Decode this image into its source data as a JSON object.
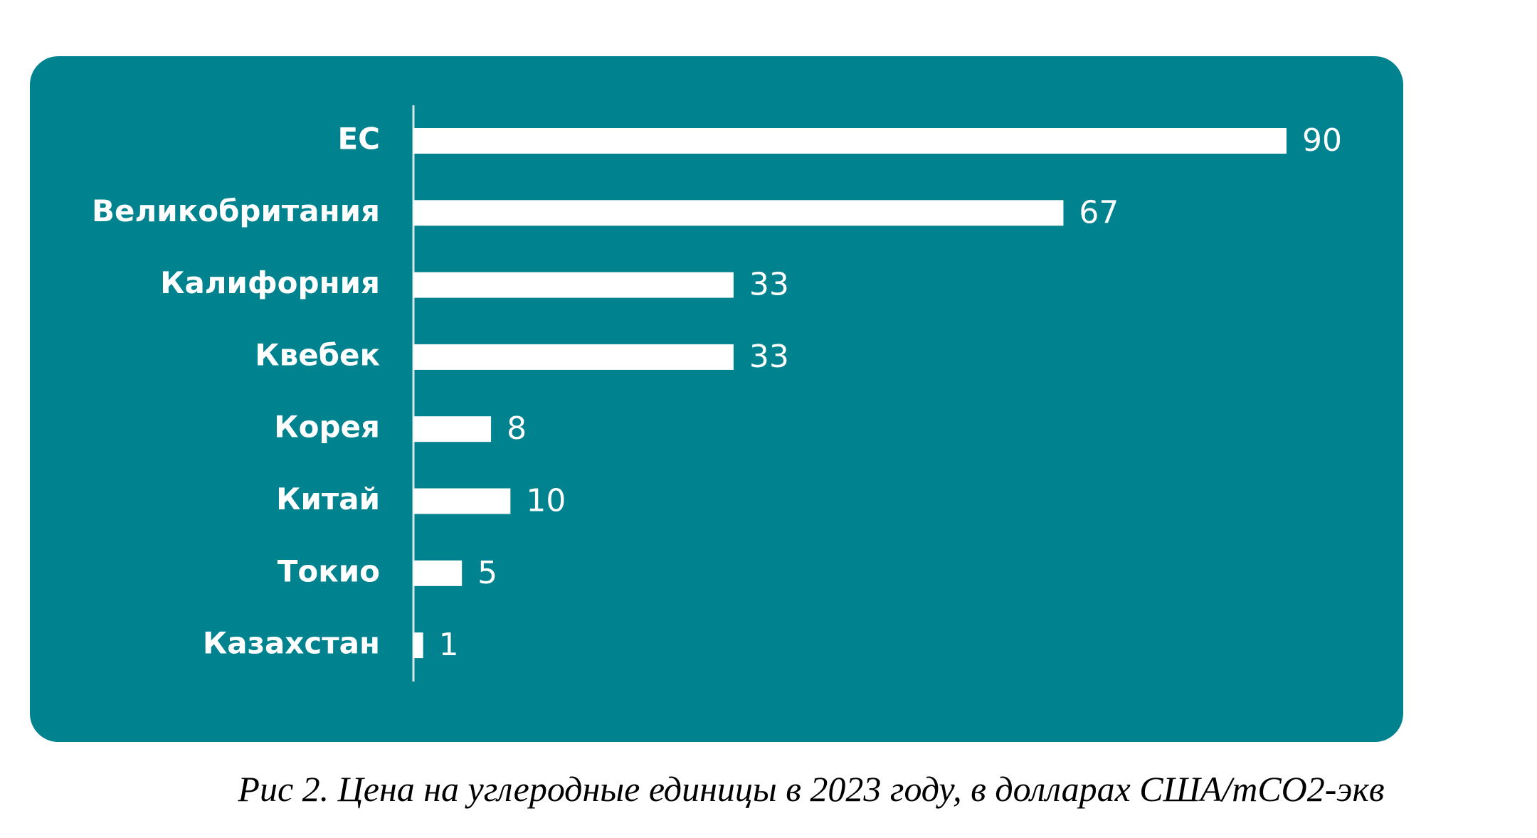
{
  "chart_data": {
    "type": "bar",
    "orientation": "horizontal",
    "categories": [
      "ЕС",
      "Великобритания",
      "Калифорния",
      "Квебек",
      "Корея",
      "Китай",
      "Токио",
      "Казахстан"
    ],
    "values": [
      90,
      67,
      33,
      33,
      8,
      10,
      5,
      1
    ],
    "color": "#ffffff",
    "background": "#00838f",
    "caption": "Рис 2. Цена на углеродные единицы в 2023 году, в долларах США/тCO2-экв"
  }
}
